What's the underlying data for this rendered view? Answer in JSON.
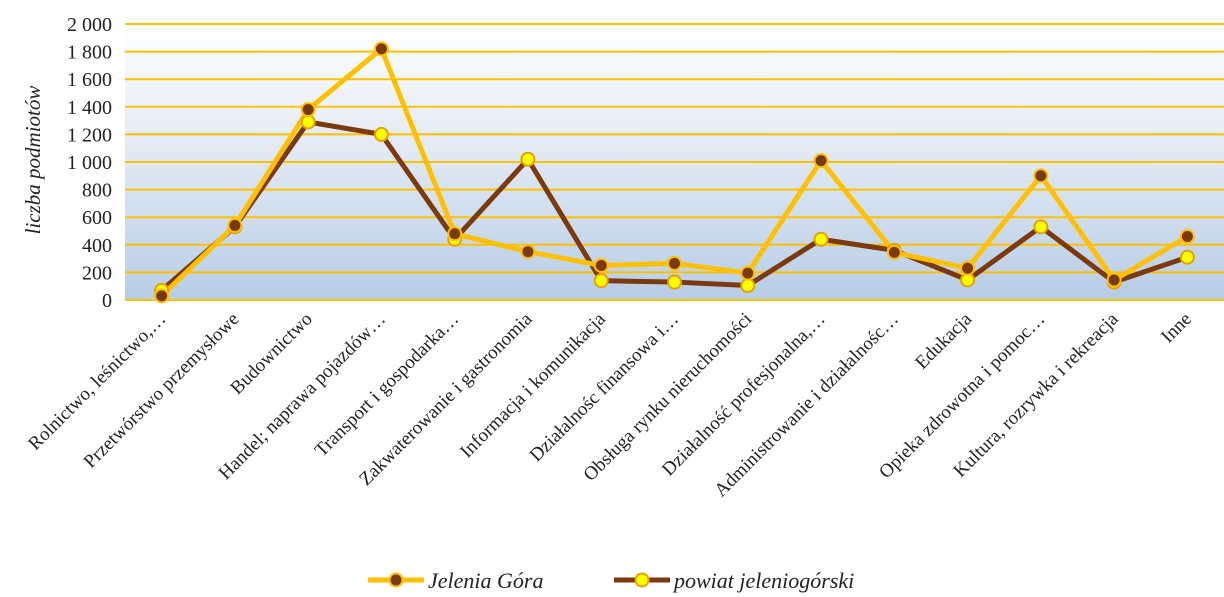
{
  "chart_data": {
    "type": "line",
    "ylabel": "liczba podmiotów",
    "ylim": [
      0,
      2000
    ],
    "yticks": [
      0,
      200,
      400,
      600,
      800,
      1000,
      1200,
      1400,
      1600,
      1800,
      2000
    ],
    "ytick_labels": [
      "0",
      "200",
      "400",
      "600",
      "800",
      "1 000",
      "1 200",
      "1 400",
      "1 600",
      "1 800",
      "2 000"
    ],
    "categories": [
      "Rolnictwo, leśnictwo,…",
      "Przetwórstwo przemysłowe",
      "Budownictwo",
      "Handel; naprawa pojazdów…",
      "Transport i gospodarka…",
      "Zakwaterowanie i gastronomia",
      "Informacja i komunikacja",
      "Działalnośc finansowa i…",
      "Obsługa rynku nieruchomości",
      "Działalność profesjonalna,…",
      "Administrowanie i działalnośc…",
      "Edukacja",
      "Opieka zdrowotna i pomoc…",
      "Kultura, rozrywka i rekreacja",
      "Inne"
    ],
    "series": [
      {
        "name": "Jelenia Góra",
        "line_color": "#FFC000",
        "marker_fill": "#7B3A0E",
        "marker_stroke": "#FFC000",
        "values": [
          30,
          540,
          1380,
          1820,
          480,
          350,
          250,
          265,
          195,
          1010,
          345,
          230,
          900,
          145,
          460
        ]
      },
      {
        "name": "powiat jeleniogórski",
        "line_color": "#7B3A0E",
        "marker_fill": "#FFFF00",
        "marker_stroke": "#E8A000",
        "values": [
          70,
          530,
          1290,
          1200,
          440,
          1020,
          140,
          130,
          105,
          440,
          360,
          145,
          530,
          130,
          310
        ]
      }
    ],
    "grid": true,
    "gridline_color": "#FFC000",
    "legend": "bottom"
  }
}
